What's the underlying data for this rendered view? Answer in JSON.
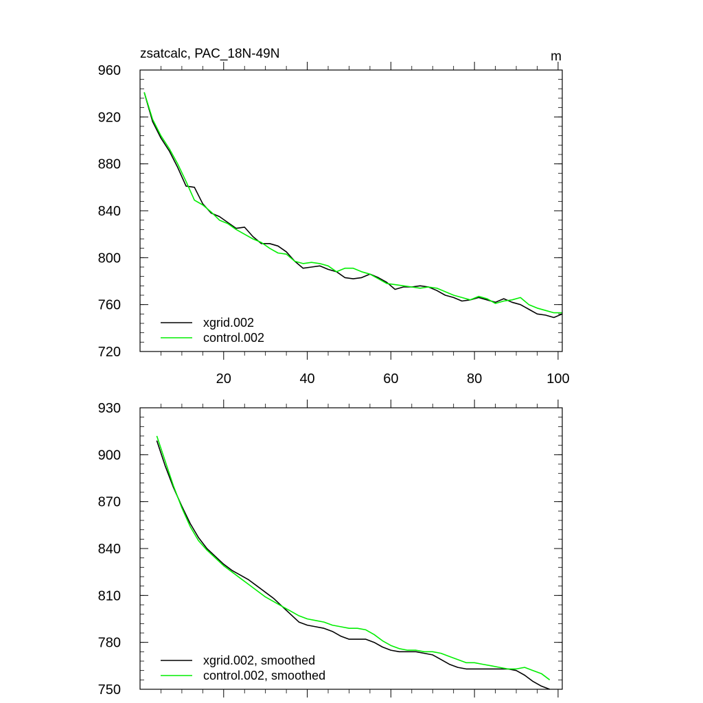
{
  "chart_data": [
    {
      "type": "line",
      "title": "zsatcalc, PAC_18N-49N",
      "units": "m",
      "xlim": [
        0,
        101
      ],
      "ylim": [
        720,
        960
      ],
      "xticks": [
        20,
        40,
        60,
        80,
        100
      ],
      "xtick_labels": [
        "20",
        "40",
        "60",
        "80",
        "100"
      ],
      "yticks": [
        720,
        760,
        800,
        840,
        880,
        920,
        960
      ],
      "ytick_labels": [
        "720",
        "760",
        "800",
        "840",
        "880",
        "920",
        "960"
      ],
      "legend": "bottom-left",
      "series": [
        {
          "name": "xgrid.002",
          "color": "#000000",
          "x": [
            1,
            3,
            5,
            7,
            9,
            11,
            13,
            15,
            17,
            19,
            21,
            23,
            25,
            27,
            29,
            31,
            33,
            35,
            37,
            39,
            41,
            43,
            45,
            47,
            49,
            51,
            53,
            55,
            57,
            59,
            61,
            63,
            65,
            67,
            69,
            71,
            73,
            75,
            77,
            79,
            81,
            83,
            85,
            87,
            89,
            91,
            93,
            95,
            97,
            99,
            101
          ],
          "y": [
            941,
            916,
            902,
            891,
            877,
            861,
            860,
            846,
            838,
            835,
            830,
            825,
            826,
            818,
            812,
            812,
            810,
            805,
            797,
            791,
            792,
            793,
            790,
            788,
            783,
            782,
            783,
            786,
            783,
            779,
            773,
            775,
            775,
            776,
            775,
            772,
            768,
            766,
            763,
            764,
            766,
            764,
            762,
            765,
            762,
            760,
            756,
            752,
            751,
            749,
            752
          ]
        },
        {
          "name": "control.002",
          "color": "#00ee00",
          "x": [
            1,
            3,
            5,
            7,
            9,
            11,
            13,
            15,
            17,
            19,
            21,
            23,
            25,
            27,
            29,
            31,
            33,
            35,
            37,
            39,
            41,
            43,
            45,
            47,
            49,
            51,
            53,
            55,
            57,
            59,
            61,
            63,
            65,
            67,
            69,
            71,
            73,
            75,
            77,
            79,
            81,
            83,
            85,
            87,
            89,
            91,
            93,
            95,
            97,
            99,
            101
          ],
          "y": [
            941,
            918,
            904,
            893,
            880,
            865,
            849,
            845,
            839,
            832,
            829,
            824,
            820,
            816,
            813,
            808,
            804,
            803,
            797,
            795,
            796,
            795,
            793,
            788,
            791,
            791,
            788,
            786,
            782,
            778,
            777,
            776,
            775,
            774,
            775,
            774,
            771,
            768,
            766,
            764,
            767,
            765,
            761,
            763,
            764,
            766,
            760,
            757,
            755,
            753,
            753
          ]
        }
      ]
    },
    {
      "type": "line",
      "title": "",
      "xlim": [
        0,
        101
      ],
      "ylim": [
        750,
        930
      ],
      "xticks": [
        20,
        40,
        60,
        80,
        100
      ],
      "yticks": [
        750,
        780,
        810,
        840,
        870,
        900,
        930
      ],
      "ytick_labels": [
        "750",
        "780",
        "810",
        "840",
        "870",
        "900",
        "930"
      ],
      "legend": "bottom-left",
      "series": [
        {
          "name": "xgrid.002, smoothed",
          "color": "#000000",
          "x": [
            4,
            6,
            8,
            10,
            12,
            14,
            16,
            18,
            20,
            22,
            24,
            26,
            28,
            30,
            32,
            34,
            36,
            38,
            40,
            42,
            44,
            46,
            48,
            50,
            52,
            54,
            56,
            58,
            60,
            62,
            64,
            66,
            68,
            70,
            72,
            74,
            76,
            78,
            80,
            82,
            84,
            86,
            88,
            90,
            92,
            94,
            96,
            98
          ],
          "y": [
            909,
            893,
            879,
            867,
            856,
            847,
            840,
            835,
            830,
            826,
            823,
            820,
            816,
            812,
            808,
            803,
            798,
            793,
            791,
            790,
            789,
            787,
            784,
            782,
            782,
            782,
            780,
            777,
            775,
            774,
            774,
            774,
            773,
            772,
            769,
            766,
            764,
            763,
            763,
            763,
            763,
            763,
            763,
            762,
            759,
            755,
            752,
            750
          ]
        },
        {
          "name": "control.002, smoothed",
          "color": "#00ee00",
          "x": [
            4,
            6,
            8,
            10,
            12,
            14,
            16,
            18,
            20,
            22,
            24,
            26,
            28,
            30,
            32,
            34,
            36,
            38,
            40,
            42,
            44,
            46,
            48,
            50,
            52,
            54,
            56,
            58,
            60,
            62,
            64,
            66,
            68,
            70,
            72,
            74,
            76,
            78,
            80,
            82,
            84,
            86,
            88,
            90,
            92,
            94,
            96,
            98
          ],
          "y": [
            912,
            896,
            880,
            866,
            854,
            845,
            839,
            834,
            829,
            825,
            821,
            817,
            813,
            809,
            806,
            803,
            800,
            797,
            795,
            794,
            793,
            791,
            790,
            789,
            789,
            788,
            785,
            781,
            778,
            776,
            775,
            775,
            774,
            774,
            773,
            771,
            769,
            767,
            767,
            766,
            765,
            764,
            763,
            763,
            764,
            762,
            760,
            756
          ]
        }
      ]
    }
  ]
}
